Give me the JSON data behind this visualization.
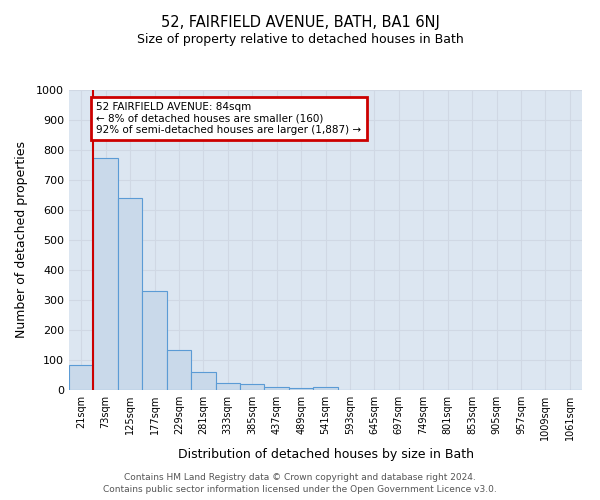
{
  "title": "52, FAIRFIELD AVENUE, BATH, BA1 6NJ",
  "subtitle": "Size of property relative to detached houses in Bath",
  "xlabel": "Distribution of detached houses by size in Bath",
  "ylabel": "Number of detached properties",
  "categories": [
    "21sqm",
    "73sqm",
    "125sqm",
    "177sqm",
    "229sqm",
    "281sqm",
    "333sqm",
    "385sqm",
    "437sqm",
    "489sqm",
    "541sqm",
    "593sqm",
    "645sqm",
    "697sqm",
    "749sqm",
    "801sqm",
    "853sqm",
    "905sqm",
    "957sqm",
    "1009sqm",
    "1061sqm"
  ],
  "values": [
    85,
    775,
    640,
    330,
    135,
    60,
    25,
    20,
    10,
    8,
    10,
    0,
    0,
    0,
    0,
    0,
    0,
    0,
    0,
    0,
    0
  ],
  "bar_color": "#c9d9ea",
  "bar_edge_color": "#5b9bd5",
  "grid_color": "#d0d8e4",
  "background_color": "#dce6f1",
  "property_line_color": "#cc0000",
  "property_line_x": 0.5,
  "annotation_text": "52 FAIRFIELD AVENUE: 84sqm\n← 8% of detached houses are smaller (160)\n92% of semi-detached houses are larger (1,887) →",
  "annotation_box_color": "#cc0000",
  "ylim": [
    0,
    1000
  ],
  "yticks": [
    0,
    100,
    200,
    300,
    400,
    500,
    600,
    700,
    800,
    900,
    1000
  ],
  "footer_line1": "Contains HM Land Registry data © Crown copyright and database right 2024.",
  "footer_line2": "Contains public sector information licensed under the Open Government Licence v3.0."
}
